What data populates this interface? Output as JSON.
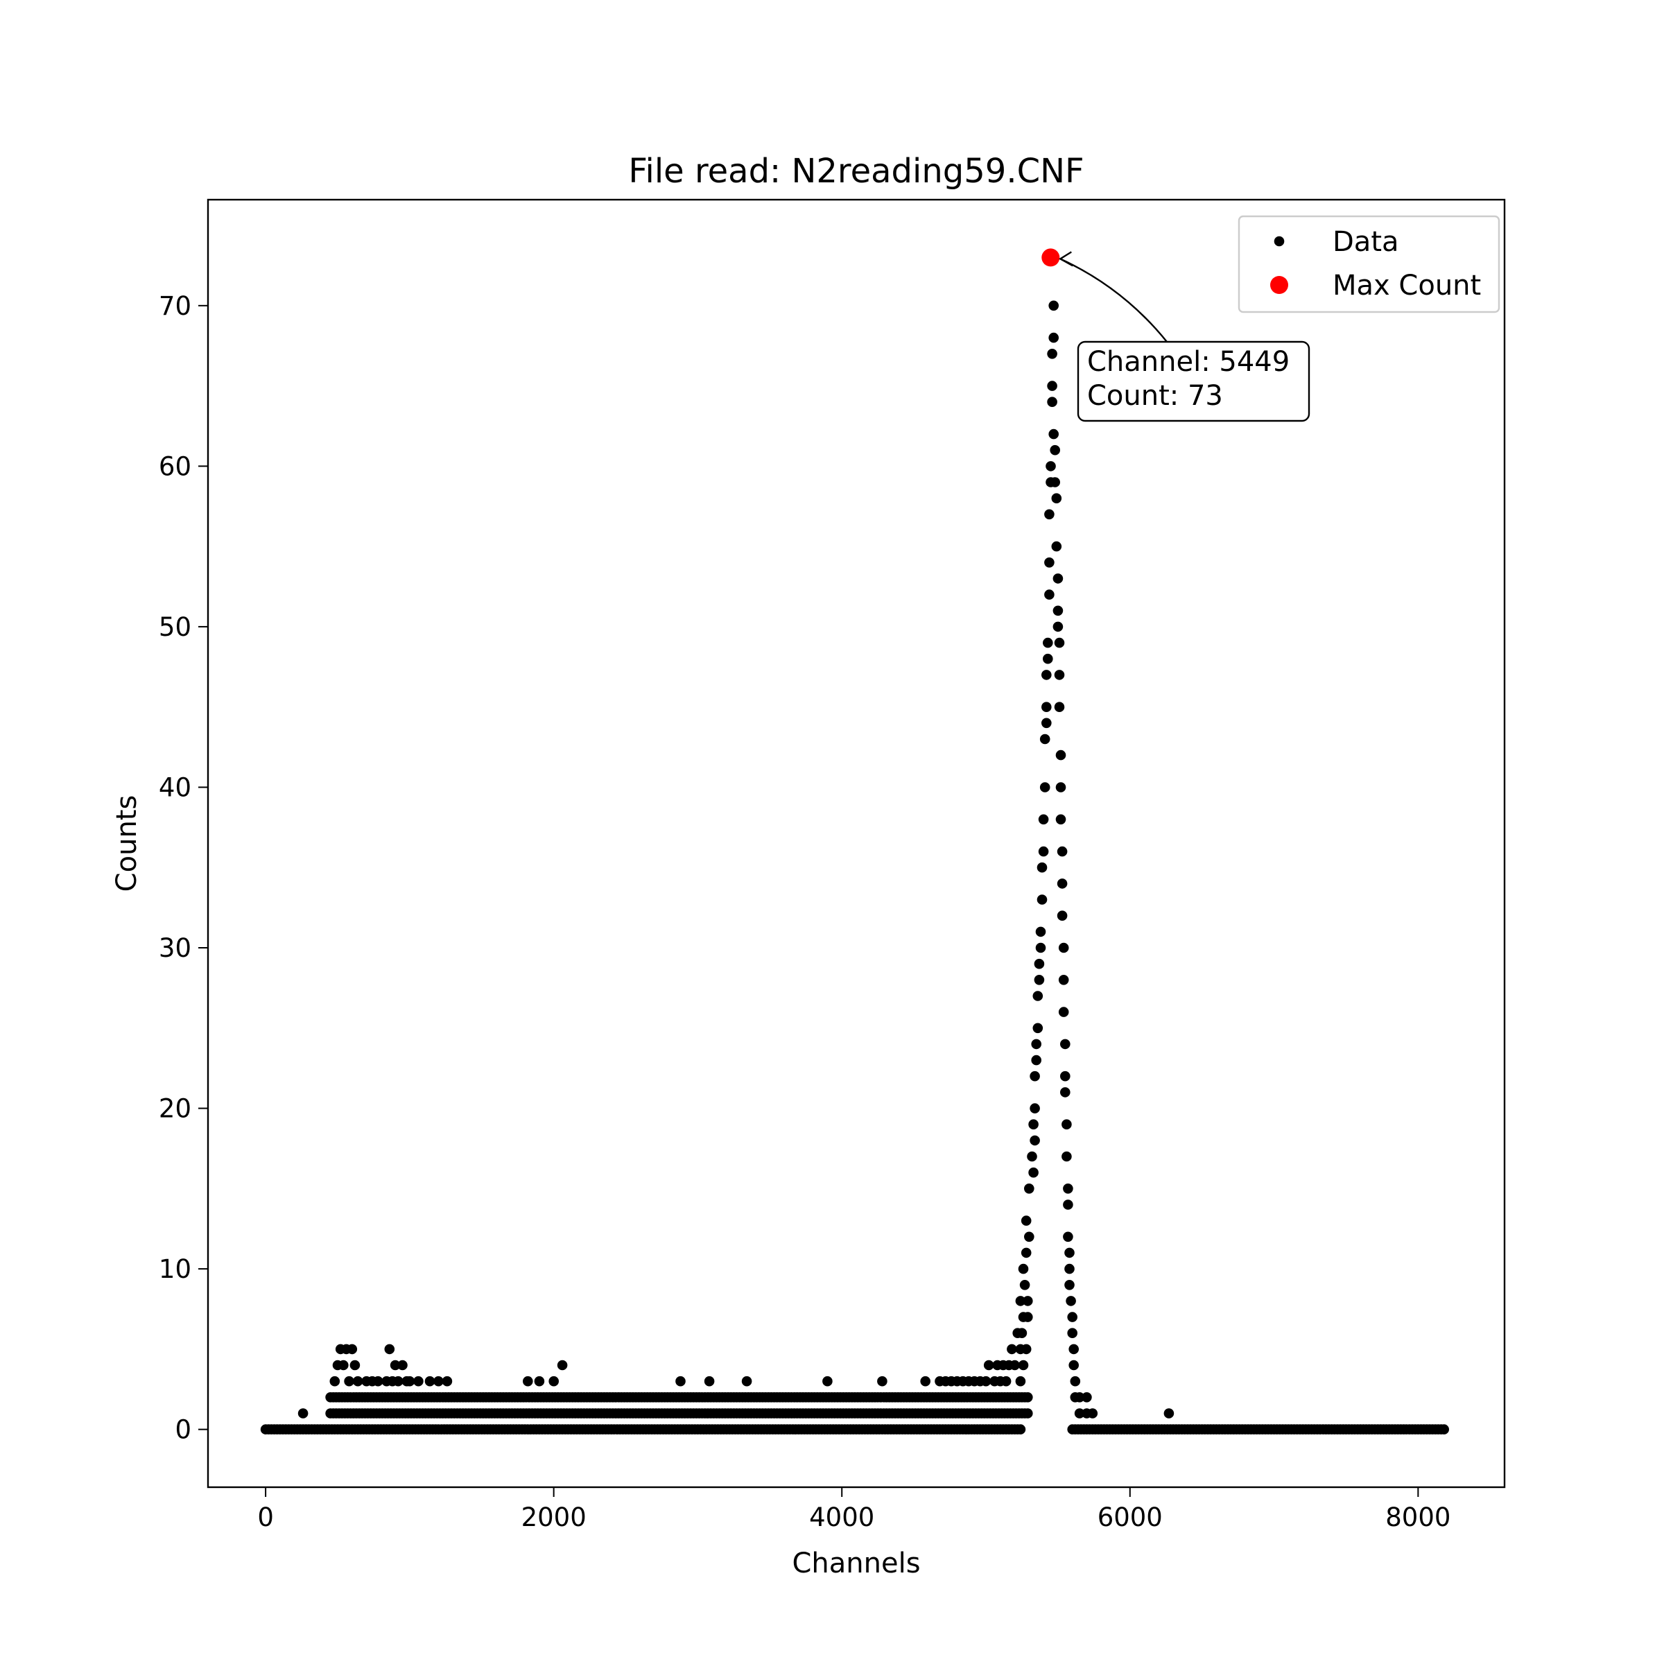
{
  "chart_data": {
    "type": "scatter",
    "title": "File read: N2reading59.CNF",
    "xlabel": "Channels",
    "ylabel": "Counts",
    "xlim": [
      -400,
      8600
    ],
    "ylim": [
      -3.6,
      76.6
    ],
    "xticks": [
      0,
      2000,
      4000,
      6000,
      8000
    ],
    "yticks": [
      0,
      10,
      20,
      30,
      40,
      50,
      60,
      70
    ],
    "grid": false,
    "legend_position": "top-right",
    "series": [
      {
        "name": "Data",
        "color": "#000000",
        "marker": "small-dot",
        "baseline_segments": [
          {
            "x_start": 0,
            "x_end": 5250,
            "y": 0
          },
          {
            "x_start": 5600,
            "x_end": 8191,
            "y": 0
          }
        ],
        "one_count_segment": {
          "x_start": 450,
          "x_end": 5300,
          "y": 1
        },
        "two_count_segment": {
          "x_start": 450,
          "x_end": 5300,
          "y": 2
        },
        "points": [
          [
            260,
            1
          ],
          [
            480,
            3
          ],
          [
            500,
            4
          ],
          [
            520,
            5
          ],
          [
            540,
            4
          ],
          [
            560,
            5
          ],
          [
            580,
            3
          ],
          [
            600,
            5
          ],
          [
            620,
            4
          ],
          [
            640,
            3
          ],
          [
            700,
            3
          ],
          [
            740,
            3
          ],
          [
            780,
            3
          ],
          [
            840,
            3
          ],
          [
            860,
            5
          ],
          [
            880,
            3
          ],
          [
            900,
            4
          ],
          [
            920,
            3
          ],
          [
            950,
            4
          ],
          [
            980,
            3
          ],
          [
            1000,
            3
          ],
          [
            1060,
            3
          ],
          [
            1140,
            3
          ],
          [
            1200,
            3
          ],
          [
            1260,
            3
          ],
          [
            1820,
            3
          ],
          [
            1900,
            3
          ],
          [
            2000,
            3
          ],
          [
            2060,
            4
          ],
          [
            2880,
            3
          ],
          [
            3080,
            3
          ],
          [
            3340,
            3
          ],
          [
            3900,
            3
          ],
          [
            4280,
            3
          ],
          [
            4580,
            3
          ],
          [
            4680,
            3
          ],
          [
            4720,
            3
          ],
          [
            4760,
            3
          ],
          [
            4800,
            3
          ],
          [
            4840,
            3
          ],
          [
            4880,
            3
          ],
          [
            4920,
            3
          ],
          [
            4960,
            3
          ],
          [
            5000,
            3
          ],
          [
            5020,
            4
          ],
          [
            5060,
            3
          ],
          [
            5080,
            4
          ],
          [
            5100,
            3
          ],
          [
            5120,
            4
          ],
          [
            5140,
            3
          ],
          [
            5160,
            4
          ],
          [
            5180,
            5
          ],
          [
            5200,
            4
          ],
          [
            5220,
            6
          ],
          [
            5240,
            3
          ],
          [
            5240,
            5
          ],
          [
            5240,
            8
          ],
          [
            5250,
            6
          ],
          [
            5260,
            4
          ],
          [
            5260,
            7
          ],
          [
            5260,
            10
          ],
          [
            5270,
            9
          ],
          [
            5280,
            5
          ],
          [
            5280,
            11
          ],
          [
            5280,
            13
          ],
          [
            5290,
            7
          ],
          [
            5290,
            8
          ],
          [
            5300,
            12
          ],
          [
            5300,
            15
          ],
          [
            5320,
            17
          ],
          [
            5330,
            16
          ],
          [
            5330,
            19
          ],
          [
            5340,
            18
          ],
          [
            5340,
            20
          ],
          [
            5340,
            22
          ],
          [
            5350,
            23
          ],
          [
            5350,
            24
          ],
          [
            5360,
            25
          ],
          [
            5360,
            27
          ],
          [
            5370,
            28
          ],
          [
            5370,
            29
          ],
          [
            5380,
            30
          ],
          [
            5380,
            31
          ],
          [
            5390,
            33
          ],
          [
            5390,
            35
          ],
          [
            5400,
            36
          ],
          [
            5400,
            38
          ],
          [
            5410,
            40
          ],
          [
            5410,
            43
          ],
          [
            5420,
            44
          ],
          [
            5420,
            45
          ],
          [
            5420,
            47
          ],
          [
            5430,
            48
          ],
          [
            5430,
            49
          ],
          [
            5440,
            52
          ],
          [
            5440,
            54
          ],
          [
            5440,
            57
          ],
          [
            5450,
            59
          ],
          [
            5450,
            60
          ],
          [
            5460,
            64
          ],
          [
            5460,
            65
          ],
          [
            5460,
            67
          ],
          [
            5470,
            68
          ],
          [
            5470,
            70
          ],
          [
            5470,
            62
          ],
          [
            5480,
            61
          ],
          [
            5480,
            59
          ],
          [
            5490,
            58
          ],
          [
            5490,
            55
          ],
          [
            5500,
            53
          ],
          [
            5500,
            51
          ],
          [
            5500,
            50
          ],
          [
            5510,
            49
          ],
          [
            5510,
            47
          ],
          [
            5510,
            45
          ],
          [
            5520,
            42
          ],
          [
            5520,
            40
          ],
          [
            5520,
            38
          ],
          [
            5530,
            36
          ],
          [
            5530,
            34
          ],
          [
            5530,
            32
          ],
          [
            5540,
            30
          ],
          [
            5540,
            28
          ],
          [
            5540,
            26
          ],
          [
            5550,
            24
          ],
          [
            5550,
            22
          ],
          [
            5550,
            21
          ],
          [
            5560,
            19
          ],
          [
            5560,
            17
          ],
          [
            5570,
            15
          ],
          [
            5570,
            14
          ],
          [
            5570,
            12
          ],
          [
            5580,
            11
          ],
          [
            5580,
            10
          ],
          [
            5580,
            9
          ],
          [
            5590,
            8
          ],
          [
            5600,
            7
          ],
          [
            5600,
            6
          ],
          [
            5610,
            5
          ],
          [
            5610,
            4
          ],
          [
            5620,
            3
          ],
          [
            5620,
            2
          ],
          [
            5650,
            2
          ],
          [
            5650,
            1
          ],
          [
            5700,
            2
          ],
          [
            5700,
            1
          ],
          [
            5740,
            1
          ],
          [
            6270,
            1
          ]
        ]
      },
      {
        "name": "Max Count",
        "color": "#ff0000",
        "marker": "large-dot",
        "points": [
          [
            5449,
            73
          ]
        ]
      }
    ],
    "annotation": {
      "lines": [
        "Channel: 5449",
        "Count: 73"
      ],
      "target": [
        5449,
        73
      ],
      "text_anchor": [
        5560,
        68.4
      ]
    }
  }
}
